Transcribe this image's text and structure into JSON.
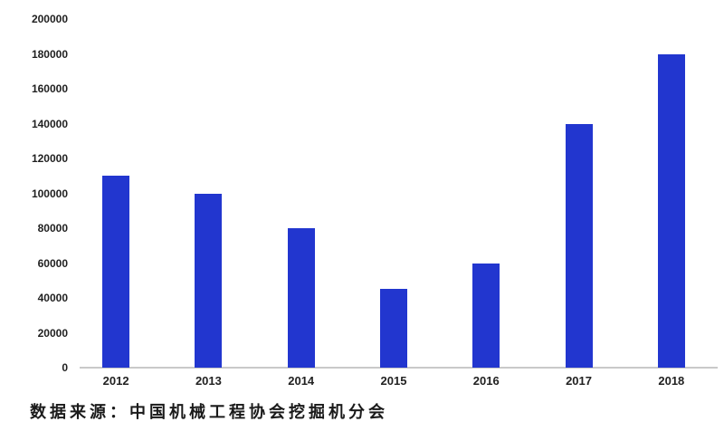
{
  "chart_data": {
    "type": "bar",
    "categories": [
      "2012",
      "2013",
      "2014",
      "2015",
      "2016",
      "2017",
      "2018"
    ],
    "values": [
      110000,
      100000,
      80000,
      45000,
      60000,
      140000,
      180000
    ],
    "title": "",
    "xlabel": "",
    "ylabel": "",
    "ylim": [
      0,
      200000
    ],
    "y_tick_step": 20000,
    "y_tick_labels": [
      "0",
      "20000",
      "40000",
      "60000",
      "80000",
      "100000",
      "120000",
      "140000",
      "160000",
      "180000",
      "200000"
    ],
    "grid": false,
    "legend": "none",
    "bar_color": "#2236cf",
    "axis_line_color": "#c9c9c9"
  },
  "source_note": "数据来源：中国机械工程协会挖掘机分会"
}
